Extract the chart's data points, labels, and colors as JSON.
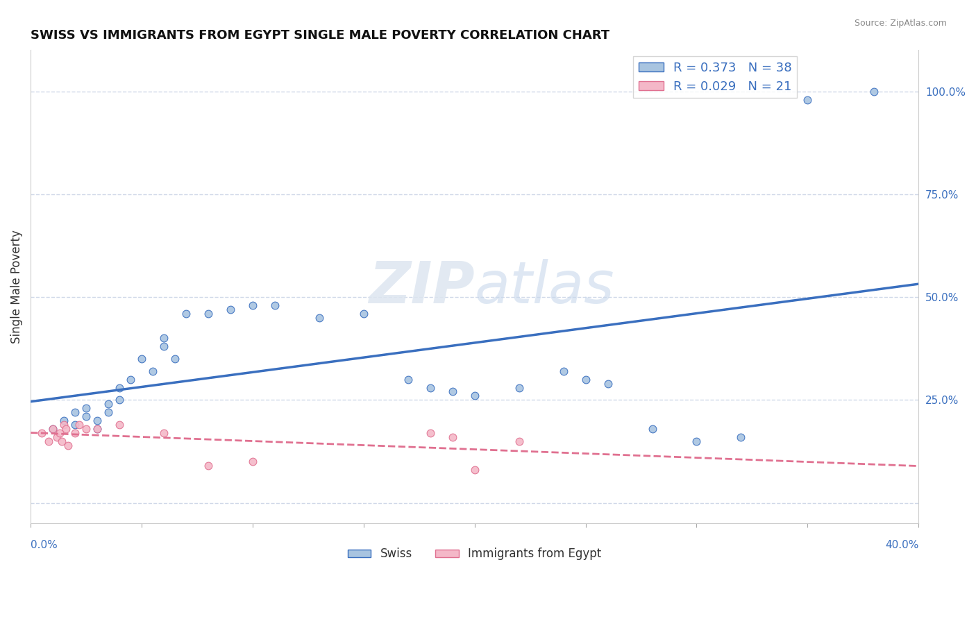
{
  "title": "SWISS VS IMMIGRANTS FROM EGYPT SINGLE MALE POVERTY CORRELATION CHART",
  "source": "Source: ZipAtlas.com",
  "ylabel": "Single Male Poverty",
  "right_yticks": [
    0.0,
    0.25,
    0.5,
    0.75,
    1.0
  ],
  "right_yticklabels": [
    "",
    "25.0%",
    "50.0%",
    "75.0%",
    "100.0%"
  ],
  "xlim": [
    0.0,
    0.4
  ],
  "ylim": [
    -0.05,
    1.1
  ],
  "legend_r1": "R = 0.373",
  "legend_n1": "N = 38",
  "legend_r2": "R = 0.029",
  "legend_n2": "N = 21",
  "blue_color": "#a8c4e0",
  "blue_line_color": "#3a6fbf",
  "pink_color": "#f4b8c8",
  "pink_line_color": "#e07090",
  "watermark_zip": "ZIP",
  "watermark_atlas": "atlas",
  "swiss_x": [
    0.01,
    0.015,
    0.02,
    0.02,
    0.025,
    0.025,
    0.03,
    0.03,
    0.035,
    0.035,
    0.04,
    0.04,
    0.045,
    0.05,
    0.055,
    0.06,
    0.06,
    0.065,
    0.07,
    0.08,
    0.09,
    0.1,
    0.11,
    0.13,
    0.15,
    0.17,
    0.18,
    0.19,
    0.2,
    0.22,
    0.24,
    0.25,
    0.26,
    0.28,
    0.3,
    0.32,
    0.35,
    0.38
  ],
  "swiss_y": [
    0.18,
    0.2,
    0.22,
    0.19,
    0.21,
    0.23,
    0.2,
    0.18,
    0.22,
    0.24,
    0.25,
    0.28,
    0.3,
    0.35,
    0.32,
    0.38,
    0.4,
    0.35,
    0.46,
    0.46,
    0.47,
    0.48,
    0.48,
    0.45,
    0.46,
    0.3,
    0.28,
    0.27,
    0.26,
    0.28,
    0.32,
    0.3,
    0.29,
    0.18,
    0.15,
    0.16,
    0.98,
    1.0
  ],
  "egypt_x": [
    0.005,
    0.008,
    0.01,
    0.012,
    0.013,
    0.014,
    0.015,
    0.016,
    0.017,
    0.02,
    0.022,
    0.025,
    0.03,
    0.04,
    0.06,
    0.08,
    0.1,
    0.18,
    0.19,
    0.2,
    0.22
  ],
  "egypt_y": [
    0.17,
    0.15,
    0.18,
    0.16,
    0.17,
    0.15,
    0.19,
    0.18,
    0.14,
    0.17,
    0.19,
    0.18,
    0.18,
    0.19,
    0.17,
    0.09,
    0.1,
    0.17,
    0.16,
    0.08,
    0.15
  ],
  "grid_color": "#d0d8e8",
  "bg_color": "#ffffff"
}
